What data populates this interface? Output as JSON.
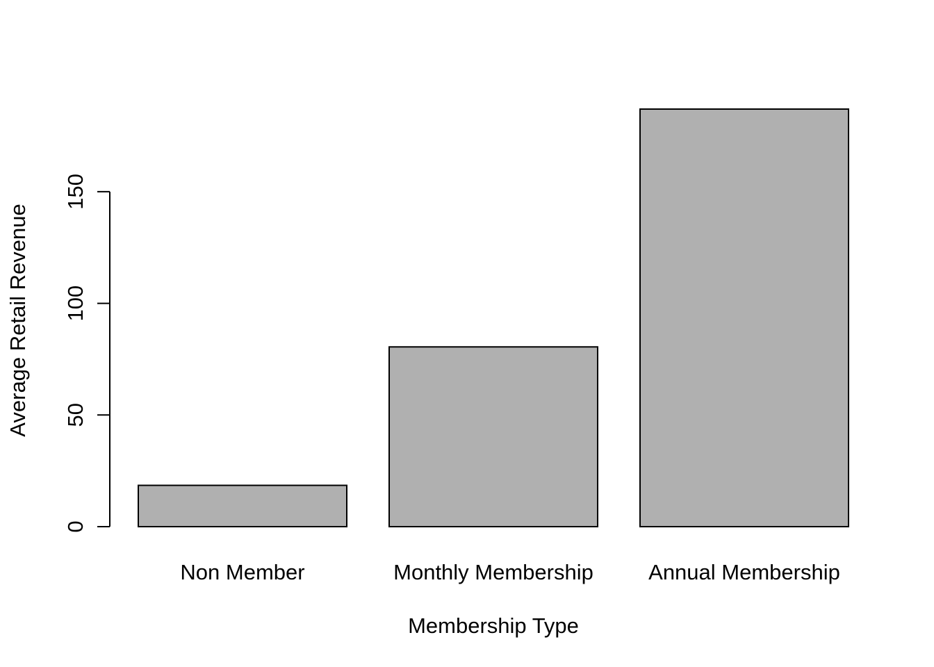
{
  "chart_data": {
    "type": "bar",
    "title": "",
    "xlabel": "Membership Type",
    "ylabel": "Average Retail Revenue",
    "categories": [
      "Non Member",
      "Monthly Membership",
      "Annual Membership"
    ],
    "values": [
      18.5,
      80.5,
      187.0
    ],
    "ylim": [
      0,
      187
    ],
    "yticks": [
      0,
      50,
      100,
      150
    ],
    "ytick_labels": [
      "0",
      "50",
      "100",
      "150"
    ],
    "grid": false,
    "bar_color": "#b0b0b0",
    "bar_border_color": "#000000"
  }
}
